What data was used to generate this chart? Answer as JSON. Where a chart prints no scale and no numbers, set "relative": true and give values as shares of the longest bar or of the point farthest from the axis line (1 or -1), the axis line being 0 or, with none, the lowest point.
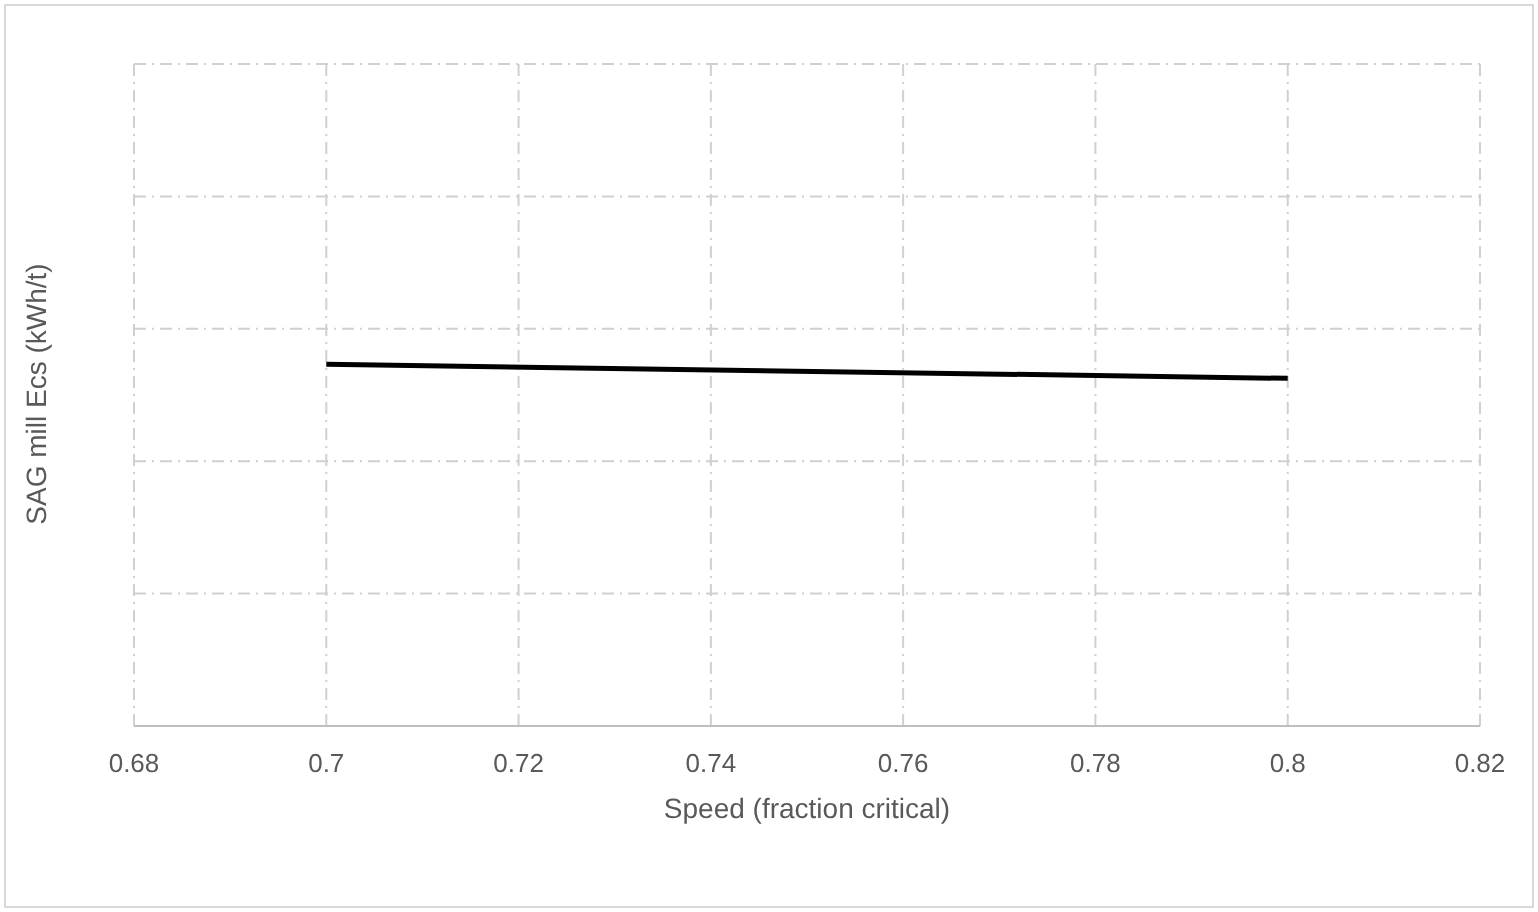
{
  "chart_data": {
    "type": "line",
    "xlabel": "Speed (fraction critical)",
    "ylabel": "SAG mill Ecs (kWh/t)",
    "x": [
      0.7,
      0.8
    ],
    "values": [
      1,
      0.961
    ],
    "color": "#000000",
    "relative": true,
    "xlim": [
      0.68,
      0.82
    ],
    "xticks": [
      0.68,
      0.7,
      0.72,
      0.74,
      0.76,
      0.78,
      0.8,
      0.82
    ],
    "grid": true,
    "marker": "none",
    "line_style": "solid",
    "legend": false,
    "tick_labels": "x"
  }
}
